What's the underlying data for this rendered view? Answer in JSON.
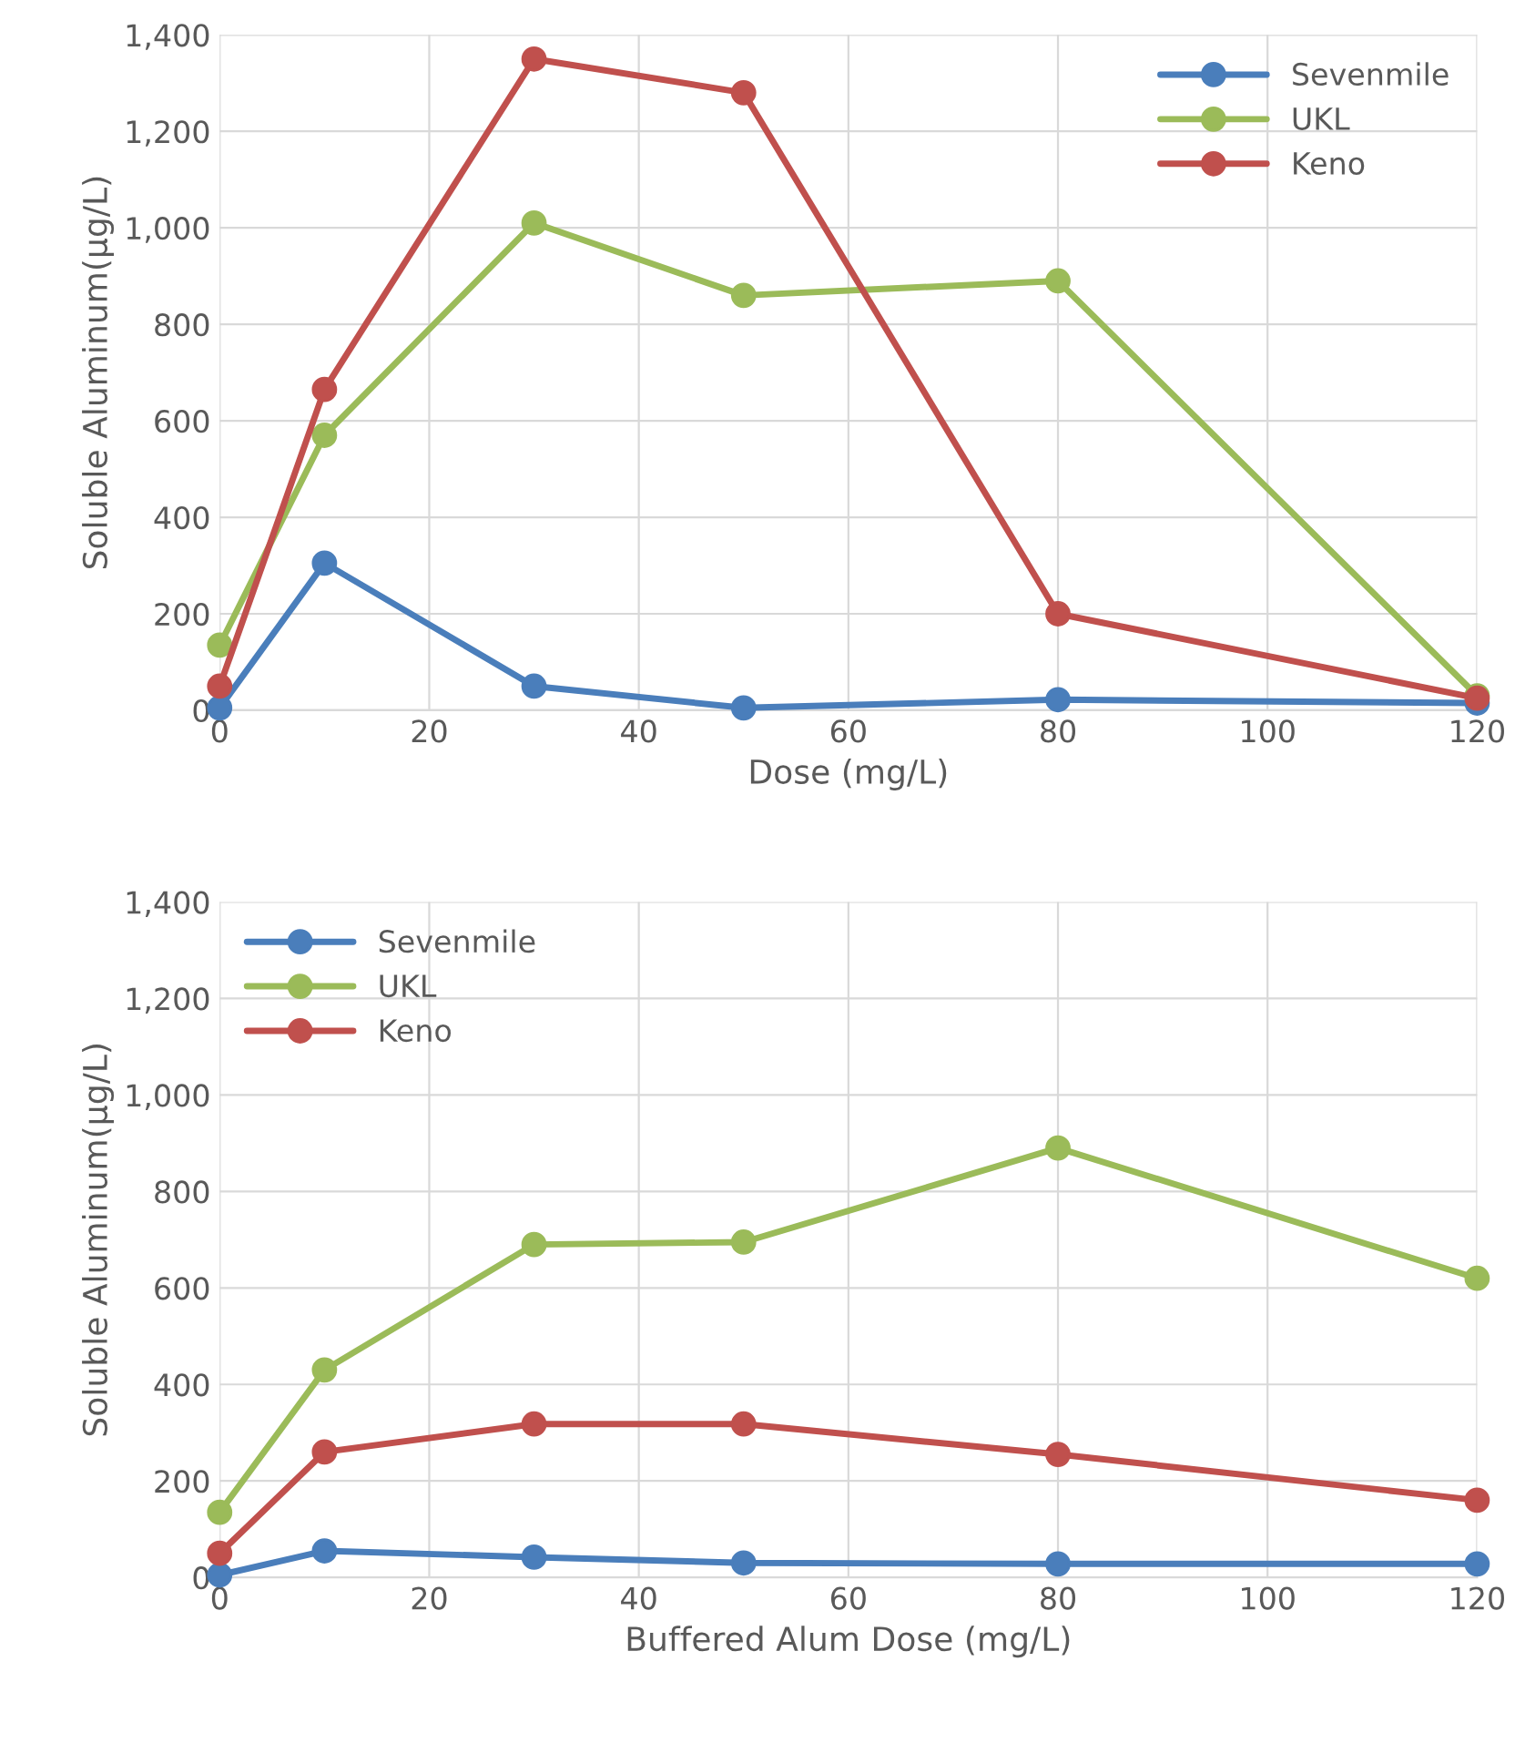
{
  "chart_data": [
    {
      "type": "line",
      "xlabel": "Dose (mg/L)",
      "ylabel": "Soluble Aluminum(µg/L)",
      "x": [
        0,
        10,
        30,
        50,
        80,
        120
      ],
      "series": [
        {
          "name": "Sevenmile",
          "color": "#4a7ebb",
          "values": [
            5,
            305,
            50,
            5,
            22,
            15
          ]
        },
        {
          "name": "UKL",
          "color": "#9bbb59",
          "values": [
            135,
            570,
            1010,
            860,
            890,
            30
          ]
        },
        {
          "name": "Keno",
          "color": "#c0504d",
          "values": [
            50,
            665,
            1350,
            1280,
            200,
            25
          ]
        }
      ],
      "xlim": [
        0,
        120
      ],
      "xticks": [
        0,
        20,
        40,
        60,
        80,
        100,
        120
      ],
      "ylim": [
        0,
        1400
      ],
      "yticks": [
        0,
        200,
        400,
        600,
        800,
        {
          "value": 1000,
          "label": "1,000"
        },
        {
          "value": 1200,
          "label": "1,200"
        },
        {
          "value": 1400,
          "label": "1,400"
        }
      ],
      "grid": true,
      "legend": "top right",
      "marker": "circle",
      "line_style": "solid"
    },
    {
      "type": "line",
      "xlabel": "Buffered Alum Dose (mg/L)",
      "ylabel": "Soluble Aluminum(µg/L)",
      "x": [
        0,
        10,
        30,
        50,
        80,
        120
      ],
      "series": [
        {
          "name": "Sevenmile",
          "color": "#4a7ebb",
          "values": [
            5,
            55,
            42,
            30,
            28,
            28
          ]
        },
        {
          "name": "UKL",
          "color": "#9bbb59",
          "values": [
            135,
            430,
            690,
            695,
            890,
            620
          ]
        },
        {
          "name": "Keno",
          "color": "#c0504d",
          "values": [
            50,
            260,
            318,
            318,
            255,
            160
          ]
        }
      ],
      "xlim": [
        0,
        120
      ],
      "xticks": [
        0,
        20,
        40,
        60,
        80,
        100,
        120
      ],
      "ylim": [
        0,
        1400
      ],
      "yticks": [
        0,
        200,
        400,
        600,
        800,
        {
          "value": 1000,
          "label": "1,000"
        },
        {
          "value": 1200,
          "label": "1,200"
        },
        {
          "value": 1400,
          "label": "1,400"
        }
      ],
      "grid": true,
      "legend": "top left",
      "marker": "circle",
      "line_style": "solid"
    }
  ]
}
